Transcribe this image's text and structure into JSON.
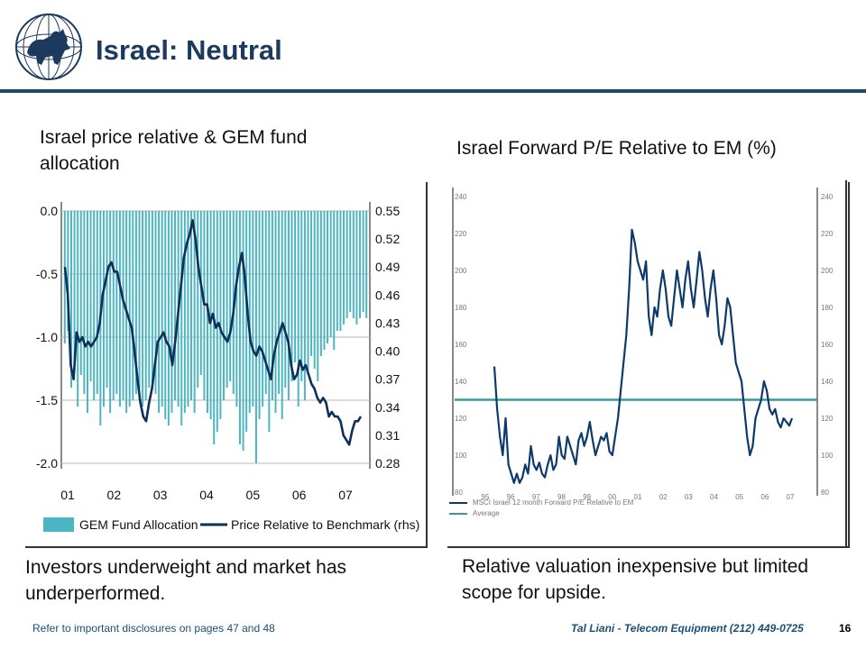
{
  "slide": {
    "title": "Israel: Neutral",
    "page_number": "16"
  },
  "footer": {
    "left": "Refer to important disclosures on pages 47 and 48",
    "right": "Tal Liani - Telecom Equipment (212) 449-0725"
  },
  "notes": {
    "left": "Investors underweight and market has underperformed.",
    "right": "Relative valuation inexpensive but limited scope for upside."
  },
  "colors": {
    "title": "#1c3a5e",
    "rule": "#1a4a6e",
    "bars": "#4bb5c1",
    "price_line": "#0d2f5a",
    "pe_line": "#0d3a6b",
    "average_line": "#3a9a9a"
  },
  "chart_data": [
    {
      "type": "bar",
      "title": "Israel price relative & GEM fund allocation",
      "x_tick_labels": [
        "01",
        "02",
        "03",
        "04",
        "05",
        "06",
        "07"
      ],
      "y_left": {
        "range": [
          -2.0,
          0.0
        ],
        "ticks": [
          "0.0",
          "-0.5",
          "-1.0",
          "-1.5",
          "-2.0"
        ]
      },
      "y_right": {
        "range": [
          0.28,
          0.55
        ],
        "ticks": [
          "0.55",
          "0.52",
          "0.49",
          "0.46",
          "0.43",
          "0.40",
          "0.37",
          "0.34",
          "0.31",
          "0.28"
        ]
      },
      "grid": true,
      "legend_position": "bottom",
      "series": [
        {
          "name": "GEM Fund Allocation",
          "axis": "left",
          "style": "bar",
          "values": [
            -1.05,
            -0.95,
            -1.4,
            -1.2,
            -1.55,
            -1.3,
            -1.45,
            -1.6,
            -1.35,
            -1.5,
            -1.45,
            -1.7,
            -1.55,
            -1.4,
            -1.6,
            -1.5,
            -1.45,
            -1.55,
            -1.5,
            -1.6,
            -1.55,
            -1.5,
            -1.45,
            -1.5,
            -1.55,
            -1.5,
            -1.4,
            -1.35,
            -1.45,
            -1.6,
            -1.55,
            -1.65,
            -1.7,
            -1.6,
            -1.5,
            -1.55,
            -1.7,
            -1.6,
            -1.55,
            -1.5,
            -1.6,
            -1.4,
            -1.3,
            -1.5,
            -1.6,
            -1.65,
            -1.85,
            -1.75,
            -1.65,
            -1.5,
            -1.4,
            -1.35,
            -1.45,
            -1.55,
            -1.85,
            -1.9,
            -1.75,
            -1.6,
            -1.55,
            -2.0,
            -1.65,
            -1.55,
            -1.45,
            -1.75,
            -1.5,
            -1.6,
            -1.45,
            -1.65,
            -1.4,
            -1.5,
            -1.35,
            -1.2,
            -1.55,
            -1.35,
            -1.5,
            -1.3,
            -1.15,
            -1.25,
            -1.35,
            -1.15,
            -1.1,
            -1.05,
            -1.0,
            -1.1,
            -0.95,
            -0.95,
            -0.9,
            -0.85,
            -0.8,
            -0.85,
            -0.9,
            -0.85,
            -0.8,
            -0.85
          ]
        },
        {
          "name": "Price Relative to Benchmark (rhs)",
          "axis": "right",
          "style": "line",
          "values": [
            0.49,
            0.46,
            0.385,
            0.37,
            0.42,
            0.41,
            0.415,
            0.405,
            0.41,
            0.405,
            0.41,
            0.415,
            0.43,
            0.46,
            0.475,
            0.49,
            0.495,
            0.485,
            0.485,
            0.47,
            0.455,
            0.445,
            0.435,
            0.425,
            0.4,
            0.37,
            0.345,
            0.33,
            0.325,
            0.345,
            0.36,
            0.385,
            0.41,
            0.415,
            0.42,
            0.41,
            0.405,
            0.385,
            0.41,
            0.44,
            0.47,
            0.5,
            0.515,
            0.525,
            0.54,
            0.52,
            0.49,
            0.47,
            0.45,
            0.45,
            0.43,
            0.44,
            0.425,
            0.43,
            0.42,
            0.415,
            0.41,
            0.42,
            0.44,
            0.47,
            0.49,
            0.505,
            0.48,
            0.44,
            0.41,
            0.4,
            0.395,
            0.405,
            0.4,
            0.39,
            0.38,
            0.37,
            0.395,
            0.41,
            0.42,
            0.43,
            0.42,
            0.41,
            0.385,
            0.37,
            0.375,
            0.39,
            0.38,
            0.385,
            0.375,
            0.365,
            0.36,
            0.35,
            0.345,
            0.35,
            0.345,
            0.33,
            0.335,
            0.33,
            0.33,
            0.325,
            0.31,
            0.305,
            0.3,
            0.315,
            0.325,
            0.325,
            0.33
          ]
        }
      ]
    },
    {
      "type": "line",
      "title": "Israel Forward P/E Relative to EM (%)",
      "x_tick_labels": [
        "95",
        "96",
        "97",
        "98",
        "99",
        "00",
        "01",
        "02",
        "03",
        "04",
        "05",
        "06",
        "07"
      ],
      "y_left": {
        "range": [
          80,
          240
        ],
        "ticks": [
          "240",
          "220",
          "200",
          "180",
          "160",
          "140",
          "120",
          "100",
          "80"
        ]
      },
      "legend_position": "bottom-left",
      "legend_labels": [
        "MSCI Israel 12 month Forward P/E Relative to EM",
        "Average"
      ],
      "series": [
        {
          "name": "MSCI Israel 12 month Forward P/E Relative to EM",
          "values": [
            148,
            125,
            110,
            100,
            120,
            95,
            90,
            85,
            90,
            85,
            88,
            95,
            90,
            105,
            95,
            92,
            96,
            90,
            88,
            95,
            100,
            92,
            95,
            110,
            100,
            98,
            110,
            105,
            100,
            95,
            108,
            112,
            105,
            110,
            118,
            108,
            100,
            105,
            110,
            108,
            112,
            102,
            100,
            110,
            120,
            135,
            150,
            165,
            190,
            222,
            215,
            205,
            200,
            195,
            205,
            175,
            165,
            180,
            175,
            190,
            200,
            190,
            175,
            170,
            185,
            200,
            190,
            180,
            195,
            205,
            190,
            180,
            195,
            210,
            200,
            185,
            175,
            190,
            200,
            185,
            165,
            160,
            170,
            185,
            180,
            165,
            150,
            145,
            140,
            125,
            110,
            100,
            105,
            120,
            125,
            130,
            140,
            135,
            125,
            122,
            125,
            118,
            115,
            120,
            118,
            116,
            120
          ]
        },
        {
          "name": "Average",
          "values": [
            130
          ]
        }
      ]
    }
  ]
}
